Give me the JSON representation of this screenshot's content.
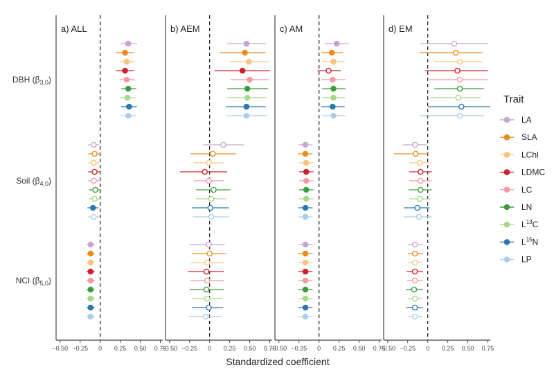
{
  "chart_data": {
    "type": "forest",
    "xlabel": "Standardized coefficient",
    "xlim": [
      -0.55,
      0.78
    ],
    "xticks": [
      -0.5,
      -0.25,
      0,
      0.25,
      0.5,
      0.75
    ],
    "xtick_labels": [
      "−0.50",
      "−0.25",
      "0",
      "0.25",
      "0.50",
      "0.75"
    ],
    "reference_line": 0,
    "row_groups": [
      {
        "key": "dbh",
        "label_main": "DBH (β",
        "label_sub": "3,0",
        "label_end": ")"
      },
      {
        "key": "soil",
        "label_main": "Soil (β",
        "label_sub": "4,0",
        "label_end": ")"
      },
      {
        "key": "nci",
        "label_main": "NCI (β",
        "label_sub": "5,0",
        "label_end": ")"
      }
    ],
    "traits": [
      {
        "name": "LA",
        "display": "LA",
        "sup": "",
        "rest": "",
        "color": "#c9a3d1"
      },
      {
        "name": "SLA",
        "display": "SLA",
        "sup": "",
        "rest": "",
        "color": "#ee8a1c"
      },
      {
        "name": "LChl",
        "display": "LChl",
        "sup": "",
        "rest": "",
        "color": "#f6c47d"
      },
      {
        "name": "LDMC",
        "display": "LDMC",
        "sup": "",
        "rest": "",
        "color": "#d0202a"
      },
      {
        "name": "LC",
        "display": "LC",
        "sup": "",
        "rest": "",
        "color": "#f39ba0"
      },
      {
        "name": "LN",
        "display": "LN",
        "sup": "",
        "rest": "",
        "color": "#3b9e3b"
      },
      {
        "name": "L13C",
        "display": "L",
        "sup": "13",
        "rest": "C",
        "color": "#a6d88a"
      },
      {
        "name": "L15N",
        "display": "L",
        "sup": "15",
        "rest": "N",
        "color": "#2b78ae"
      },
      {
        "name": "LP",
        "display": "LP",
        "sup": "",
        "rest": "",
        "color": "#a9cfe4"
      }
    ],
    "legend": {
      "title": "Trait",
      "position": "right"
    },
    "panels": [
      {
        "title": "a) ALL",
        "groups": {
          "dbh": [
            {
              "est": 0.35,
              "lo": 0.26,
              "hi": 0.46,
              "filled": true
            },
            {
              "est": 0.31,
              "lo": 0.2,
              "hi": 0.42,
              "filled": true
            },
            {
              "est": 0.33,
              "lo": 0.24,
              "hi": 0.43,
              "filled": true
            },
            {
              "est": 0.31,
              "lo": 0.2,
              "hi": 0.42,
              "filled": true
            },
            {
              "est": 0.33,
              "lo": 0.24,
              "hi": 0.43,
              "filled": true
            },
            {
              "est": 0.35,
              "lo": 0.26,
              "hi": 0.45,
              "filled": true
            },
            {
              "est": 0.34,
              "lo": 0.25,
              "hi": 0.44,
              "filled": true
            },
            {
              "est": 0.36,
              "lo": 0.26,
              "hi": 0.46,
              "filled": true
            },
            {
              "est": 0.35,
              "lo": 0.26,
              "hi": 0.45,
              "filled": true
            }
          ],
          "soil": [
            {
              "est": -0.08,
              "lo": -0.15,
              "hi": -0.01,
              "filled": false
            },
            {
              "est": -0.07,
              "lo": -0.15,
              "hi": 0.0,
              "filled": false
            },
            {
              "est": -0.08,
              "lo": -0.15,
              "hi": -0.01,
              "filled": false
            },
            {
              "est": -0.07,
              "lo": -0.15,
              "hi": 0.0,
              "filled": false
            },
            {
              "est": -0.08,
              "lo": -0.15,
              "hi": -0.01,
              "filled": false
            },
            {
              "est": -0.06,
              "lo": -0.14,
              "hi": 0.01,
              "filled": false
            },
            {
              "est": -0.07,
              "lo": -0.14,
              "hi": 0.0,
              "filled": false
            },
            {
              "est": -0.09,
              "lo": -0.16,
              "hi": -0.02,
              "filled": true
            },
            {
              "est": -0.08,
              "lo": -0.15,
              "hi": -0.01,
              "filled": false
            }
          ],
          "nci": [
            {
              "est": -0.12,
              "lo": -0.17,
              "hi": -0.07,
              "filled": true
            },
            {
              "est": -0.12,
              "lo": -0.17,
              "hi": -0.07,
              "filled": true
            },
            {
              "est": -0.12,
              "lo": -0.17,
              "hi": -0.07,
              "filled": true
            },
            {
              "est": -0.12,
              "lo": -0.17,
              "hi": -0.07,
              "filled": true
            },
            {
              "est": -0.12,
              "lo": -0.17,
              "hi": -0.07,
              "filled": true
            },
            {
              "est": -0.12,
              "lo": -0.17,
              "hi": -0.07,
              "filled": true
            },
            {
              "est": -0.12,
              "lo": -0.17,
              "hi": -0.07,
              "filled": true
            },
            {
              "est": -0.12,
              "lo": -0.17,
              "hi": -0.07,
              "filled": true
            },
            {
              "est": -0.12,
              "lo": -0.17,
              "hi": -0.07,
              "filled": true
            }
          ]
        }
      },
      {
        "title": "b) AEM",
        "groups": {
          "dbh": [
            {
              "est": 0.46,
              "lo": 0.22,
              "hi": 0.7,
              "filled": true
            },
            {
              "est": 0.44,
              "lo": 0.13,
              "hi": 0.7,
              "filled": true
            },
            {
              "est": 0.49,
              "lo": 0.26,
              "hi": 0.74,
              "filled": true
            },
            {
              "est": 0.41,
              "lo": 0.06,
              "hi": 0.75,
              "filled": true
            },
            {
              "est": 0.5,
              "lo": 0.26,
              "hi": 0.74,
              "filled": true
            },
            {
              "est": 0.47,
              "lo": 0.22,
              "hi": 0.73,
              "filled": true
            },
            {
              "est": 0.47,
              "lo": 0.22,
              "hi": 0.72,
              "filled": true
            },
            {
              "est": 0.46,
              "lo": 0.2,
              "hi": 0.7,
              "filled": true
            },
            {
              "est": 0.46,
              "lo": 0.21,
              "hi": 0.72,
              "filled": true
            }
          ],
          "soil": [
            {
              "est": 0.17,
              "lo": -0.08,
              "hi": 0.43,
              "filled": false
            },
            {
              "est": 0.04,
              "lo": -0.24,
              "hi": 0.33,
              "filled": false
            },
            {
              "est": -0.01,
              "lo": -0.2,
              "hi": 0.18,
              "filled": false
            },
            {
              "est": -0.06,
              "lo": -0.37,
              "hi": 0.22,
              "filled": false
            },
            {
              "est": -0.01,
              "lo": -0.2,
              "hi": 0.18,
              "filled": false
            },
            {
              "est": 0.05,
              "lo": -0.17,
              "hi": 0.26,
              "filled": false
            },
            {
              "est": 0.02,
              "lo": -0.17,
              "hi": 0.21,
              "filled": false
            },
            {
              "est": 0.01,
              "lo": -0.22,
              "hi": 0.24,
              "filled": false
            },
            {
              "est": 0.02,
              "lo": -0.21,
              "hi": 0.24,
              "filled": false
            }
          ],
          "nci": [
            {
              "est": -0.01,
              "lo": -0.25,
              "hi": 0.19,
              "filled": false
            },
            {
              "est": 0.0,
              "lo": -0.22,
              "hi": 0.21,
              "filled": false
            },
            {
              "est": -0.03,
              "lo": -0.24,
              "hi": 0.18,
              "filled": false
            },
            {
              "est": -0.04,
              "lo": -0.27,
              "hi": 0.18,
              "filled": false
            },
            {
              "est": -0.03,
              "lo": -0.24,
              "hi": 0.18,
              "filled": false
            },
            {
              "est": -0.04,
              "lo": -0.25,
              "hi": 0.18,
              "filled": false
            },
            {
              "est": -0.03,
              "lo": -0.22,
              "hi": 0.16,
              "filled": false
            },
            {
              "est": -0.01,
              "lo": -0.22,
              "hi": 0.17,
              "filled": false
            },
            {
              "est": -0.05,
              "lo": -0.26,
              "hi": 0.15,
              "filled": false
            }
          ]
        }
      },
      {
        "title": "c) AM",
        "groups": {
          "dbh": [
            {
              "est": 0.22,
              "lo": 0.07,
              "hi": 0.37,
              "filled": true
            },
            {
              "est": 0.16,
              "lo": 0.03,
              "hi": 0.3,
              "filled": true
            },
            {
              "est": 0.18,
              "lo": 0.04,
              "hi": 0.32,
              "filled": true
            },
            {
              "est": 0.12,
              "lo": -0.02,
              "hi": 0.27,
              "filled": false
            },
            {
              "est": 0.17,
              "lo": 0.03,
              "hi": 0.33,
              "filled": true
            },
            {
              "est": 0.18,
              "lo": 0.04,
              "hi": 0.33,
              "filled": true
            },
            {
              "est": 0.18,
              "lo": 0.04,
              "hi": 0.33,
              "filled": true
            },
            {
              "est": 0.17,
              "lo": 0.03,
              "hi": 0.32,
              "filled": true
            },
            {
              "est": 0.18,
              "lo": 0.04,
              "hi": 0.33,
              "filled": true
            }
          ],
          "soil": [
            {
              "est": -0.17,
              "lo": -0.26,
              "hi": -0.08,
              "filled": true
            },
            {
              "est": -0.17,
              "lo": -0.26,
              "hi": -0.08,
              "filled": true
            },
            {
              "est": -0.16,
              "lo": -0.25,
              "hi": -0.07,
              "filled": true
            },
            {
              "est": -0.16,
              "lo": -0.25,
              "hi": -0.07,
              "filled": true
            },
            {
              "est": -0.16,
              "lo": -0.25,
              "hi": -0.07,
              "filled": true
            },
            {
              "est": -0.16,
              "lo": -0.25,
              "hi": -0.07,
              "filled": true
            },
            {
              "est": -0.16,
              "lo": -0.25,
              "hi": -0.07,
              "filled": true
            },
            {
              "est": -0.17,
              "lo": -0.26,
              "hi": -0.08,
              "filled": true
            },
            {
              "est": -0.17,
              "lo": -0.26,
              "hi": -0.08,
              "filled": true
            }
          ],
          "nci": [
            {
              "est": -0.17,
              "lo": -0.26,
              "hi": -0.08,
              "filled": true
            },
            {
              "est": -0.17,
              "lo": -0.26,
              "hi": -0.08,
              "filled": true
            },
            {
              "est": -0.17,
              "lo": -0.26,
              "hi": -0.08,
              "filled": true
            },
            {
              "est": -0.17,
              "lo": -0.26,
              "hi": -0.08,
              "filled": true
            },
            {
              "est": -0.17,
              "lo": -0.26,
              "hi": -0.08,
              "filled": true
            },
            {
              "est": -0.17,
              "lo": -0.26,
              "hi": -0.08,
              "filled": true
            },
            {
              "est": -0.17,
              "lo": -0.26,
              "hi": -0.08,
              "filled": true
            },
            {
              "est": -0.17,
              "lo": -0.26,
              "hi": -0.08,
              "filled": true
            },
            {
              "est": -0.17,
              "lo": -0.26,
              "hi": -0.08,
              "filled": true
            }
          ]
        }
      },
      {
        "title": "d) EM",
        "groups": {
          "dbh": [
            {
              "est": 0.33,
              "lo": -0.09,
              "hi": 0.75,
              "filled": false
            },
            {
              "est": 0.35,
              "lo": -0.1,
              "hi": 0.68,
              "filled": false
            },
            {
              "est": 0.4,
              "lo": 0.08,
              "hi": 0.68,
              "filled": false
            },
            {
              "est": 0.37,
              "lo": -0.03,
              "hi": 0.75,
              "filled": false
            },
            {
              "est": 0.4,
              "lo": 0.02,
              "hi": 0.75,
              "filled": false
            },
            {
              "est": 0.4,
              "lo": 0.08,
              "hi": 0.7,
              "filled": false
            },
            {
              "est": 0.38,
              "lo": 0.03,
              "hi": 0.66,
              "filled": false
            },
            {
              "est": 0.42,
              "lo": 0.0,
              "hi": 0.78,
              "filled": false
            },
            {
              "est": 0.4,
              "lo": -0.1,
              "hi": 0.7,
              "filled": false
            }
          ],
          "soil": [
            {
              "est": -0.16,
              "lo": -0.31,
              "hi": -0.01,
              "filled": false
            },
            {
              "est": -0.15,
              "lo": -0.42,
              "hi": 0.01,
              "filled": false
            },
            {
              "est": -0.1,
              "lo": -0.23,
              "hi": 0.03,
              "filled": false
            },
            {
              "est": -0.09,
              "lo": -0.23,
              "hi": 0.05,
              "filled": false
            },
            {
              "est": -0.09,
              "lo": -0.23,
              "hi": 0.05,
              "filled": false
            },
            {
              "est": -0.09,
              "lo": -0.24,
              "hi": 0.05,
              "filled": false
            },
            {
              "est": -0.1,
              "lo": -0.23,
              "hi": 0.03,
              "filled": false
            },
            {
              "est": -0.13,
              "lo": -0.3,
              "hi": 0.02,
              "filled": false
            },
            {
              "est": -0.11,
              "lo": -0.3,
              "hi": 0.05,
              "filled": false
            }
          ],
          "nci": [
            {
              "est": -0.16,
              "lo": -0.25,
              "hi": -0.06,
              "filled": false
            },
            {
              "est": -0.16,
              "lo": -0.25,
              "hi": -0.06,
              "filled": false
            },
            {
              "est": -0.16,
              "lo": -0.25,
              "hi": -0.07,
              "filled": false
            },
            {
              "est": -0.16,
              "lo": -0.26,
              "hi": -0.06,
              "filled": false
            },
            {
              "est": -0.16,
              "lo": -0.26,
              "hi": -0.06,
              "filled": false
            },
            {
              "est": -0.17,
              "lo": -0.27,
              "hi": -0.06,
              "filled": false
            },
            {
              "est": -0.16,
              "lo": -0.25,
              "hi": -0.07,
              "filled": false
            },
            {
              "est": -0.16,
              "lo": -0.27,
              "hi": -0.06,
              "filled": false
            },
            {
              "est": -0.16,
              "lo": -0.25,
              "hi": -0.07,
              "filled": false
            }
          ]
        }
      }
    ]
  }
}
